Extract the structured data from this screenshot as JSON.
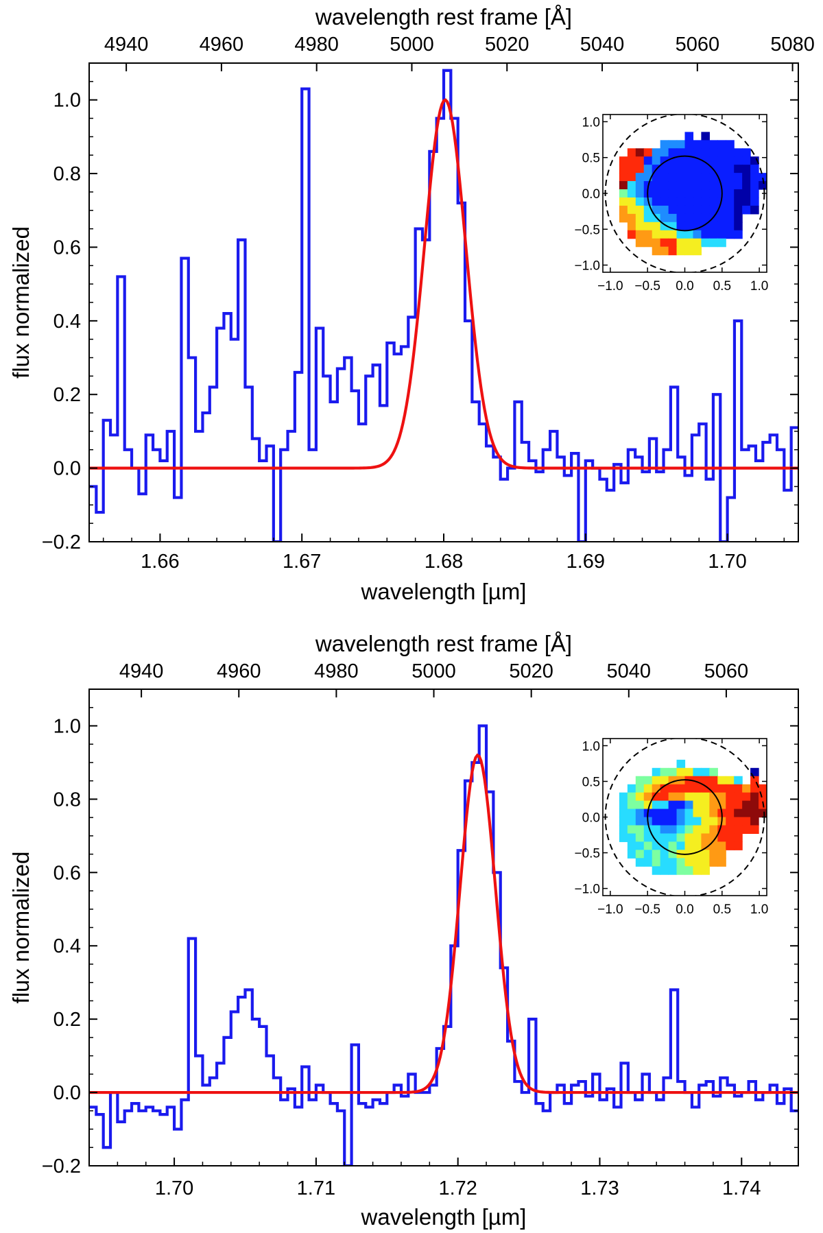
{
  "colors": {
    "data": "#1a1aee",
    "model": "#ee1111",
    "axis": "#000000"
  },
  "chart_data": [
    {
      "type": "line",
      "name": "top",
      "xlabel": "wavelength [µm]",
      "ylabel": "flux normalized",
      "top_xlabel": "wavelength rest frame [Å]",
      "xlim": [
        1.655,
        1.705
      ],
      "ylim": [
        -0.2,
        1.1
      ],
      "x_ticks": [
        "1.66",
        "1.67",
        "1.68",
        "1.69",
        "1.70"
      ],
      "x_tick_values": [
        1.66,
        1.67,
        1.68,
        1.69,
        1.7
      ],
      "y_ticks": [
        "−0.2",
        "0.0",
        "0.2",
        "0.4",
        "0.6",
        "0.8",
        "1.0"
      ],
      "y_tick_values": [
        -0.2,
        0.0,
        0.2,
        0.4,
        0.6,
        0.8,
        1.0
      ],
      "top_ticks": [
        "4940",
        "4960",
        "4980",
        "5000",
        "5020",
        "5040",
        "5060",
        "5080"
      ],
      "top_tick_values": [
        4940,
        4960,
        4980,
        5000,
        5020,
        5040,
        5060,
        5080
      ],
      "rest_factor": 3.3555,
      "series": [
        {
          "name": "spectrum",
          "style": "step",
          "x": [
            1.655,
            1.6555,
            1.656,
            1.6565,
            1.657,
            1.6575,
            1.658,
            1.6585,
            1.659,
            1.6595,
            1.66,
            1.6605,
            1.661,
            1.6615,
            1.662,
            1.6625,
            1.663,
            1.6635,
            1.664,
            1.6645,
            1.665,
            1.6655,
            1.666,
            1.6665,
            1.667,
            1.6675,
            1.668,
            1.6685,
            1.669,
            1.6695,
            1.67,
            1.6705,
            1.671,
            1.6715,
            1.672,
            1.6725,
            1.673,
            1.6735,
            1.674,
            1.6745,
            1.675,
            1.6755,
            1.676,
            1.6765,
            1.677,
            1.6775,
            1.678,
            1.6785,
            1.679,
            1.6795,
            1.68,
            1.6805,
            1.681,
            1.6815,
            1.682,
            1.6825,
            1.683,
            1.6835,
            1.684,
            1.6845,
            1.685,
            1.6855,
            1.686,
            1.6865,
            1.687,
            1.6875,
            1.688,
            1.6885,
            1.689,
            1.6895,
            1.69,
            1.6905,
            1.691,
            1.6915,
            1.692,
            1.6925,
            1.693,
            1.6935,
            1.694,
            1.6945,
            1.695,
            1.6955,
            1.696,
            1.6965,
            1.697,
            1.6975,
            1.698,
            1.6985,
            1.699,
            1.6995,
            1.7,
            1.7005,
            1.701,
            1.7015,
            1.702,
            1.7025,
            1.703,
            1.7035,
            1.704,
            1.7045
          ],
          "y": [
            -0.05,
            -0.12,
            0.13,
            0.09,
            0.52,
            0.05,
            0.0,
            -0.07,
            0.09,
            0.05,
            0.02,
            0.1,
            -0.08,
            0.57,
            0.3,
            0.1,
            0.15,
            0.22,
            0.38,
            0.42,
            0.35,
            0.62,
            0.22,
            0.08,
            0.02,
            0.06,
            -0.2,
            0.05,
            0.1,
            0.26,
            1.03,
            0.05,
            0.38,
            0.25,
            0.18,
            0.27,
            0.3,
            0.21,
            0.12,
            0.25,
            0.28,
            0.17,
            0.34,
            0.31,
            0.33,
            0.41,
            0.65,
            0.62,
            0.86,
            0.95,
            1.08,
            0.95,
            0.72,
            0.4,
            0.18,
            0.12,
            0.06,
            0.03,
            -0.03,
            0.0,
            0.18,
            0.07,
            0.02,
            -0.01,
            0.05,
            0.1,
            0.03,
            -0.02,
            0.04,
            -0.2,
            0.02,
            0.0,
            -0.03,
            -0.06,
            0.01,
            -0.04,
            0.05,
            0.03,
            -0.01,
            0.08,
            -0.01,
            0.05,
            0.22,
            0.03,
            -0.02,
            0.09,
            0.12,
            -0.03,
            0.2,
            -0.2,
            -0.08,
            0.4,
            0.05,
            0.06,
            0.02,
            0.07,
            0.09,
            0.05,
            -0.06,
            0.11
          ]
        },
        {
          "name": "gaussian-fit",
          "style": "gaussian",
          "amplitude": 1.0,
          "center": 1.6801,
          "sigma": 0.00145
        }
      ],
      "inset": {
        "x_ticks": [
          "−1.0",
          "−0.5",
          "0.0",
          "0.5",
          "1.0"
        ],
        "x_tick_values": [
          -1.0,
          -0.5,
          0.0,
          0.5,
          1.0
        ],
        "y_ticks": [
          "1.0",
          "0.5",
          "0.0",
          "−0.5",
          "−1.0"
        ],
        "y_tick_values": [
          1.0,
          0.5,
          0.0,
          -0.5,
          -1.0
        ],
        "lim": [
          -1.1,
          1.1
        ],
        "inner_radius": 0.5,
        "outer_radius": 1.1,
        "colormap": "jet",
        "map": [
          "..........b.k.......",
          ".......iiibbbbbb....",
          "...rmriibbbbbbbbbb..",
          "..rrrbibbbbbbbbbbbk.",
          "..rrribbbbbbbbbbkkb.",
          "..rriibbbbbbbbbbbkbb",
          "..mcibbbbbbbbbbbbkbk",
          "..gcibbbbbbbbbbbkkb.",
          "..yycibbbbbbbbbbkkb.",
          "..oyyciibbbbbbbbkbk.",
          "..ooycciibbbbbbbk...",
          "...oyyyccbbbbbbbk...",
          "...rooyyyccibbbbb...",
          "....ooorryyyccc.....",
          "......ooryyy........"
        ]
      }
    },
    {
      "type": "line",
      "name": "bottom",
      "xlabel": "wavelength [µm]",
      "ylabel": "flux normalized",
      "top_xlabel": "wavelength rest frame [Å]",
      "xlim": [
        1.694,
        1.744
      ],
      "ylim": [
        -0.2,
        1.1
      ],
      "x_ticks": [
        "1.70",
        "1.71",
        "1.72",
        "1.73",
        "1.74"
      ],
      "x_tick_values": [
        1.7,
        1.71,
        1.72,
        1.73,
        1.74
      ],
      "y_ticks": [
        "−0.2",
        "0.0",
        "0.2",
        "0.4",
        "0.6",
        "0.8",
        "1.0"
      ],
      "y_tick_values": [
        -0.2,
        0.0,
        0.2,
        0.4,
        0.6,
        0.8,
        1.0
      ],
      "top_ticks": [
        "4940",
        "4960",
        "4980",
        "5000",
        "5020",
        "5040",
        "5060"
      ],
      "top_tick_values": [
        4940,
        4960,
        4980,
        5000,
        5020,
        5040,
        5060
      ],
      "rest_factor": 3.4366,
      "series": [
        {
          "name": "spectrum",
          "style": "step",
          "x": [
            1.694,
            1.6945,
            1.695,
            1.6955,
            1.696,
            1.6965,
            1.697,
            1.6975,
            1.698,
            1.6985,
            1.699,
            1.6995,
            1.7,
            1.7005,
            1.701,
            1.7015,
            1.702,
            1.7025,
            1.703,
            1.7035,
            1.704,
            1.7045,
            1.705,
            1.7055,
            1.706,
            1.7065,
            1.707,
            1.7075,
            1.708,
            1.7085,
            1.709,
            1.7095,
            1.71,
            1.7105,
            1.711,
            1.7115,
            1.712,
            1.7125,
            1.713,
            1.7135,
            1.714,
            1.7145,
            1.715,
            1.7155,
            1.716,
            1.7165,
            1.717,
            1.7175,
            1.718,
            1.7185,
            1.719,
            1.7195,
            1.72,
            1.7205,
            1.721,
            1.7215,
            1.722,
            1.7225,
            1.723,
            1.7235,
            1.724,
            1.7245,
            1.725,
            1.7255,
            1.726,
            1.7265,
            1.727,
            1.7275,
            1.728,
            1.7285,
            1.729,
            1.7295,
            1.73,
            1.7305,
            1.731,
            1.7315,
            1.732,
            1.7325,
            1.733,
            1.7335,
            1.734,
            1.7345,
            1.735,
            1.7355,
            1.736,
            1.7365,
            1.737,
            1.7375,
            1.738,
            1.7385,
            1.739,
            1.7395,
            1.74,
            1.7405,
            1.741,
            1.7415,
            1.742,
            1.7425,
            1.743,
            1.7435
          ],
          "y": [
            -0.04,
            -0.06,
            -0.15,
            0.0,
            -0.08,
            -0.05,
            -0.03,
            -0.05,
            -0.04,
            -0.05,
            -0.06,
            -0.04,
            -0.1,
            -0.02,
            0.42,
            0.1,
            0.02,
            0.04,
            0.08,
            0.15,
            0.22,
            0.26,
            0.28,
            0.2,
            0.18,
            0.1,
            0.04,
            -0.02,
            0.01,
            -0.04,
            0.07,
            -0.02,
            0.02,
            0.0,
            -0.03,
            -0.05,
            -0.2,
            0.13,
            -0.03,
            -0.04,
            -0.02,
            -0.03,
            0.0,
            0.02,
            -0.01,
            0.05,
            0.0,
            0.0,
            0.02,
            0.12,
            0.18,
            0.4,
            0.66,
            0.85,
            0.9,
            1.0,
            0.82,
            0.6,
            0.34,
            0.14,
            0.03,
            0.0,
            0.2,
            -0.03,
            -0.05,
            0.0,
            0.02,
            -0.03,
            0.02,
            0.03,
            -0.01,
            0.05,
            -0.02,
            0.01,
            -0.04,
            0.08,
            0.0,
            -0.02,
            0.05,
            0.0,
            -0.02,
            0.04,
            0.28,
            0.03,
            0.0,
            -0.04,
            0.02,
            0.03,
            -0.01,
            0.04,
            0.02,
            -0.01,
            0.0,
            0.03,
            -0.02,
            0.0,
            0.02,
            -0.03,
            0.01,
            -0.05
          ]
        },
        {
          "name": "gaussian-fit",
          "style": "gaussian",
          "amplitude": 0.92,
          "center": 1.7214,
          "sigma": 0.00125
        }
      ],
      "inset": {
        "x_ticks": [
          "−1.0",
          "−0.5",
          "0.0",
          "0.5",
          "1.0"
        ],
        "x_tick_values": [
          -1.0,
          -0.5,
          0.0,
          0.5,
          1.0
        ],
        "y_ticks": [
          "1.0",
          "0.5",
          "0.0",
          "−0.5",
          "−1.0"
        ],
        "y_tick_values": [
          1.0,
          0.5,
          0.0,
          -0.5,
          -1.0
        ],
        "lim": [
          -1.1,
          1.1
        ],
        "inner_radius": 0.5,
        "outer_radius": 1.1,
        "colormap": "jet",
        "map": [
          ".........c..........",
          "......cggyyccg....k.",
          "....ggyyoorrrryyc.r.",
          "...cgyorrrrrrrrrrorr",
          "..cgyorrooyyyoorrrmr",
          "..cggyccbbiyyoorrmmr",
          "..ccibbbbicyyorrmmmm",
          "..cciibbbiccyyorrrm.",
          "..cggcciicgyyorrrrr.",
          "..ccgccccgyyoorrr...",
          "...ccgccgcyyooorr...",
          "...cgcgcgyyyyoo.....",
          "....ccgccgyyyoo.....",
          "......cccggyy......."
        ]
      }
    }
  ]
}
